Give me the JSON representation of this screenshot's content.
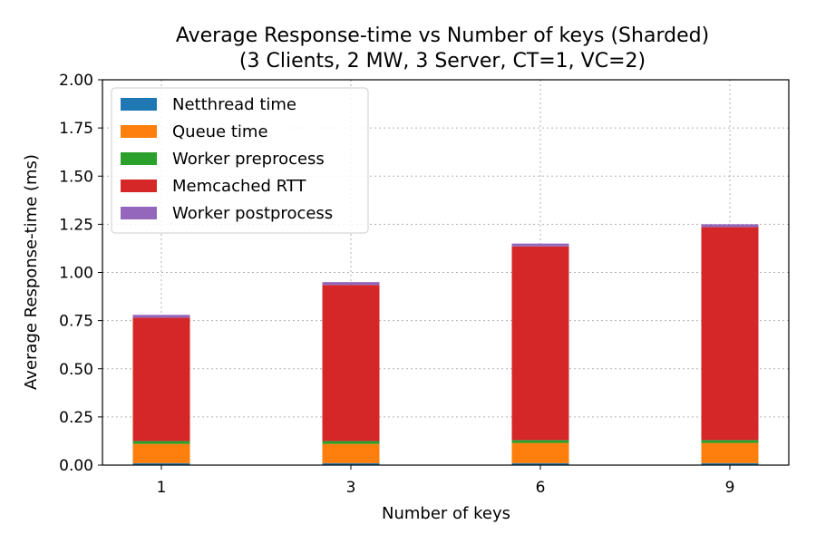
{
  "chart_data": {
    "type": "bar",
    "stacked": true,
    "title": "Average Response-time vs Number of keys (Sharded)",
    "subtitle": "(3 Clients, 2 MW, 3 Server, CT=1, VC=2)",
    "xlabel": "Number of keys",
    "ylabel": "Average Response-time (ms)",
    "ylim": [
      0,
      2.0
    ],
    "yticks": [
      "0.00",
      "0.25",
      "0.50",
      "0.75",
      "1.00",
      "1.25",
      "1.50",
      "1.75",
      "2.00"
    ],
    "categories": [
      "1",
      "3",
      "6",
      "9"
    ],
    "grid": true,
    "legend_position": "top-left",
    "series": [
      {
        "name": "Netthread time",
        "color": "#1f77b4",
        "values": [
          0.01,
          0.01,
          0.01,
          0.01
        ]
      },
      {
        "name": "Queue time",
        "color": "#ff7f0e",
        "values": [
          0.1,
          0.1,
          0.105,
          0.105
        ]
      },
      {
        "name": "Worker preprocess",
        "color": "#2ca02c",
        "values": [
          0.015,
          0.015,
          0.015,
          0.015
        ]
      },
      {
        "name": "Memcached RTT",
        "color": "#d62728",
        "values": [
          0.64,
          0.81,
          1.005,
          1.105
        ]
      },
      {
        "name": "Worker postprocess",
        "color": "#9467bd",
        "values": [
          0.015,
          0.015,
          0.015,
          0.015
        ]
      }
    ]
  }
}
